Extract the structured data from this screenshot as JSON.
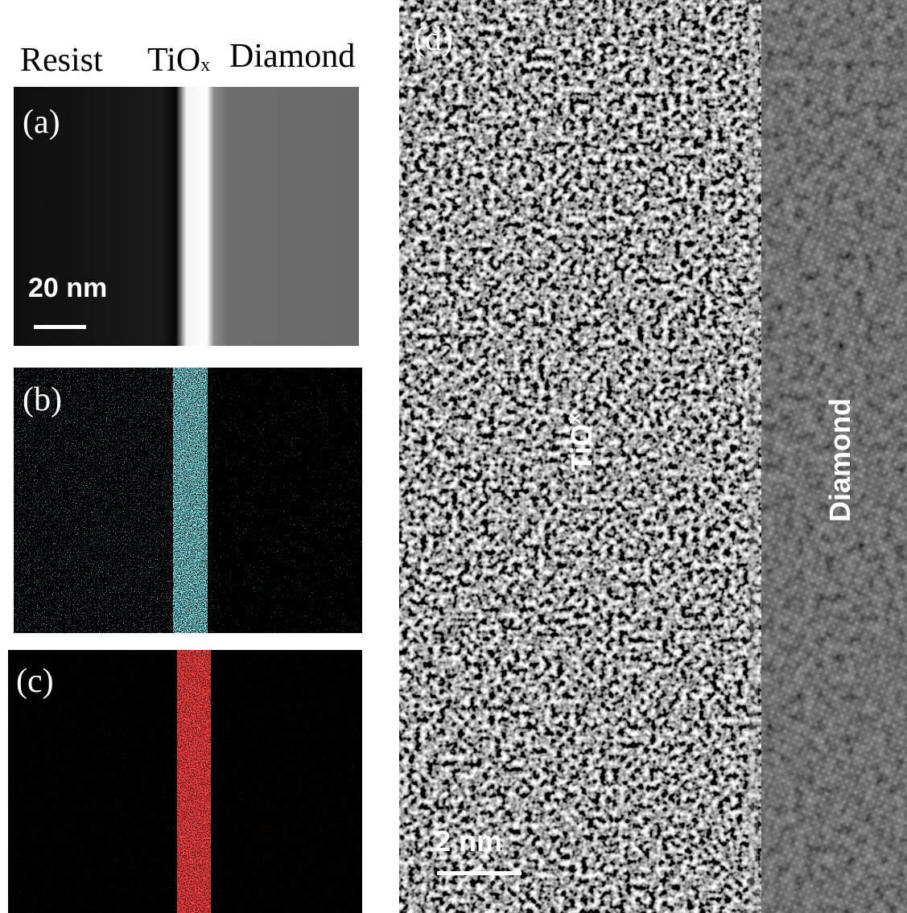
{
  "header": {
    "labels": [
      "Resist",
      {
        "base": "TiO",
        "sub": "x"
      },
      "Diamond"
    ]
  },
  "panels": {
    "a": {
      "label": "(a)",
      "scale_bar": "20 nm"
    },
    "b": {
      "label": "(b)"
    },
    "c": {
      "label": "(c)"
    },
    "d": {
      "label": "(d)",
      "scale_bar": "2 nm",
      "regions": [
        {
          "base": "TiO",
          "sub": "x"
        },
        "Diamond"
      ]
    }
  }
}
